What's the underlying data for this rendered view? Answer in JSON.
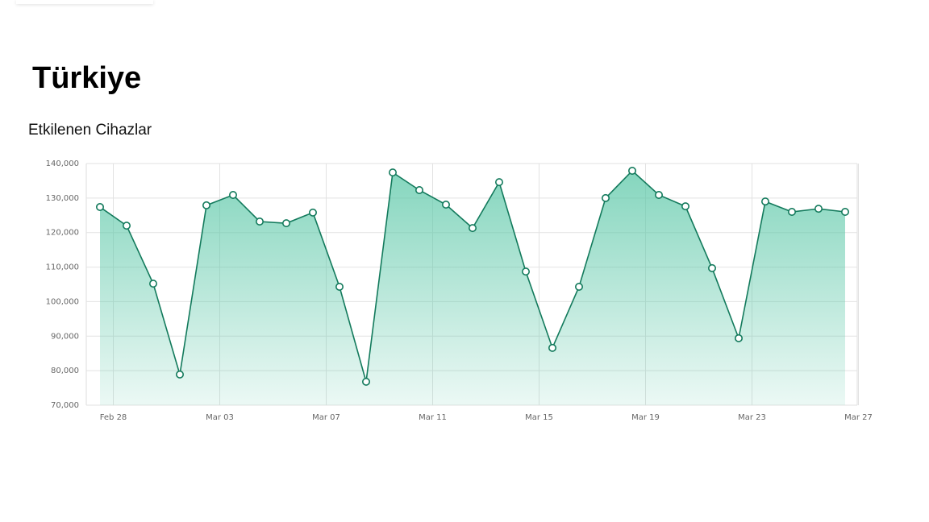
{
  "chart_data": {
    "type": "area",
    "title": "Türkiye",
    "subtitle": "Etkilenen Cihazlar",
    "x": [
      "Feb 27",
      "Feb 28",
      "Feb 29",
      "Mar 01",
      "Mar 02",
      "Mar 03",
      "Mar 04",
      "Mar 05",
      "Mar 06",
      "Mar 07",
      "Mar 08",
      "Mar 09",
      "Mar 10",
      "Mar 11",
      "Mar 12",
      "Mar 13",
      "Mar 14",
      "Mar 15",
      "Mar 16",
      "Mar 17",
      "Mar 18",
      "Mar 19",
      "Mar 20",
      "Mar 21",
      "Mar 22",
      "Mar 23",
      "Mar 24",
      "Mar 25",
      "Mar 26"
    ],
    "values": [
      127400,
      122000,
      105200,
      78900,
      127900,
      130900,
      123200,
      122700,
      125800,
      104300,
      76800,
      137400,
      132300,
      128100,
      121300,
      134600,
      108700,
      86600,
      104300,
      130000,
      137900,
      130900,
      127600,
      109700,
      89400,
      129000,
      126000,
      126900,
      126000
    ],
    "color": "#137a5c",
    "fill_color": "#5cc8a8",
    "ylim": [
      70000,
      140000
    ],
    "yticks": [
      {
        "value": 70000,
        "label": "70,000"
      },
      {
        "value": 80000,
        "label": "80,000"
      },
      {
        "value": 90000,
        "label": "90,000"
      },
      {
        "value": 100000,
        "label": "100,000"
      },
      {
        "value": 110000,
        "label": "110,000"
      },
      {
        "value": 120000,
        "label": "120,000"
      },
      {
        "value": 130000,
        "label": "130,000"
      },
      {
        "value": 140000,
        "label": "140,000"
      }
    ],
    "xticks": [
      "Feb 28",
      "Mar 03",
      "Mar 07",
      "Mar 11",
      "Mar 15",
      "Mar 19",
      "Mar 23",
      "Mar 27"
    ],
    "grid": true
  }
}
